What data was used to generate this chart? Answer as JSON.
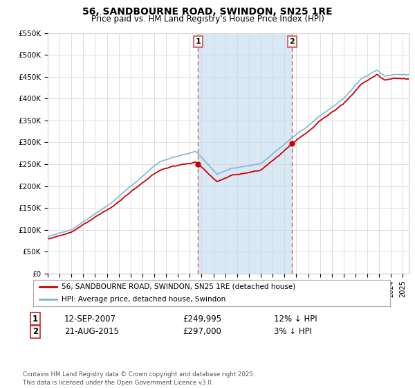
{
  "title": "56, SANDBOURNE ROAD, SWINDON, SN25 1RE",
  "subtitle": "Price paid vs. HM Land Registry's House Price Index (HPI)",
  "ylabel_ticks": [
    "£0",
    "£50K",
    "£100K",
    "£150K",
    "£200K",
    "£250K",
    "£300K",
    "£350K",
    "£400K",
    "£450K",
    "£500K",
    "£550K"
  ],
  "yticks": [
    0,
    50000,
    100000,
    150000,
    200000,
    250000,
    300000,
    350000,
    400000,
    450000,
    500000,
    550000
  ],
  "ylim": [
    0,
    550000
  ],
  "xlim_start": 1995.0,
  "xlim_end": 2025.5,
  "hpi_color": "#7bb3d9",
  "price_color": "#cc0000",
  "vline_color": "#d06060",
  "shade_color": "#d8e8f5",
  "sale1_x": 2007.7,
  "sale1_y": 249995,
  "sale2_x": 2015.64,
  "sale2_y": 297000,
  "legend_label1": "56, SANDBOURNE ROAD, SWINDON, SN25 1RE (detached house)",
  "legend_label2": "HPI: Average price, detached house, Swindon",
  "sale1_date": "12-SEP-2007",
  "sale1_price": "£249,995",
  "sale1_hpi": "12% ↓ HPI",
  "sale2_date": "21-AUG-2015",
  "sale2_price": "£297,000",
  "sale2_hpi": "3% ↓ HPI",
  "footer": "Contains HM Land Registry data © Crown copyright and database right 2025.\nThis data is licensed under the Open Government Licence v3.0."
}
